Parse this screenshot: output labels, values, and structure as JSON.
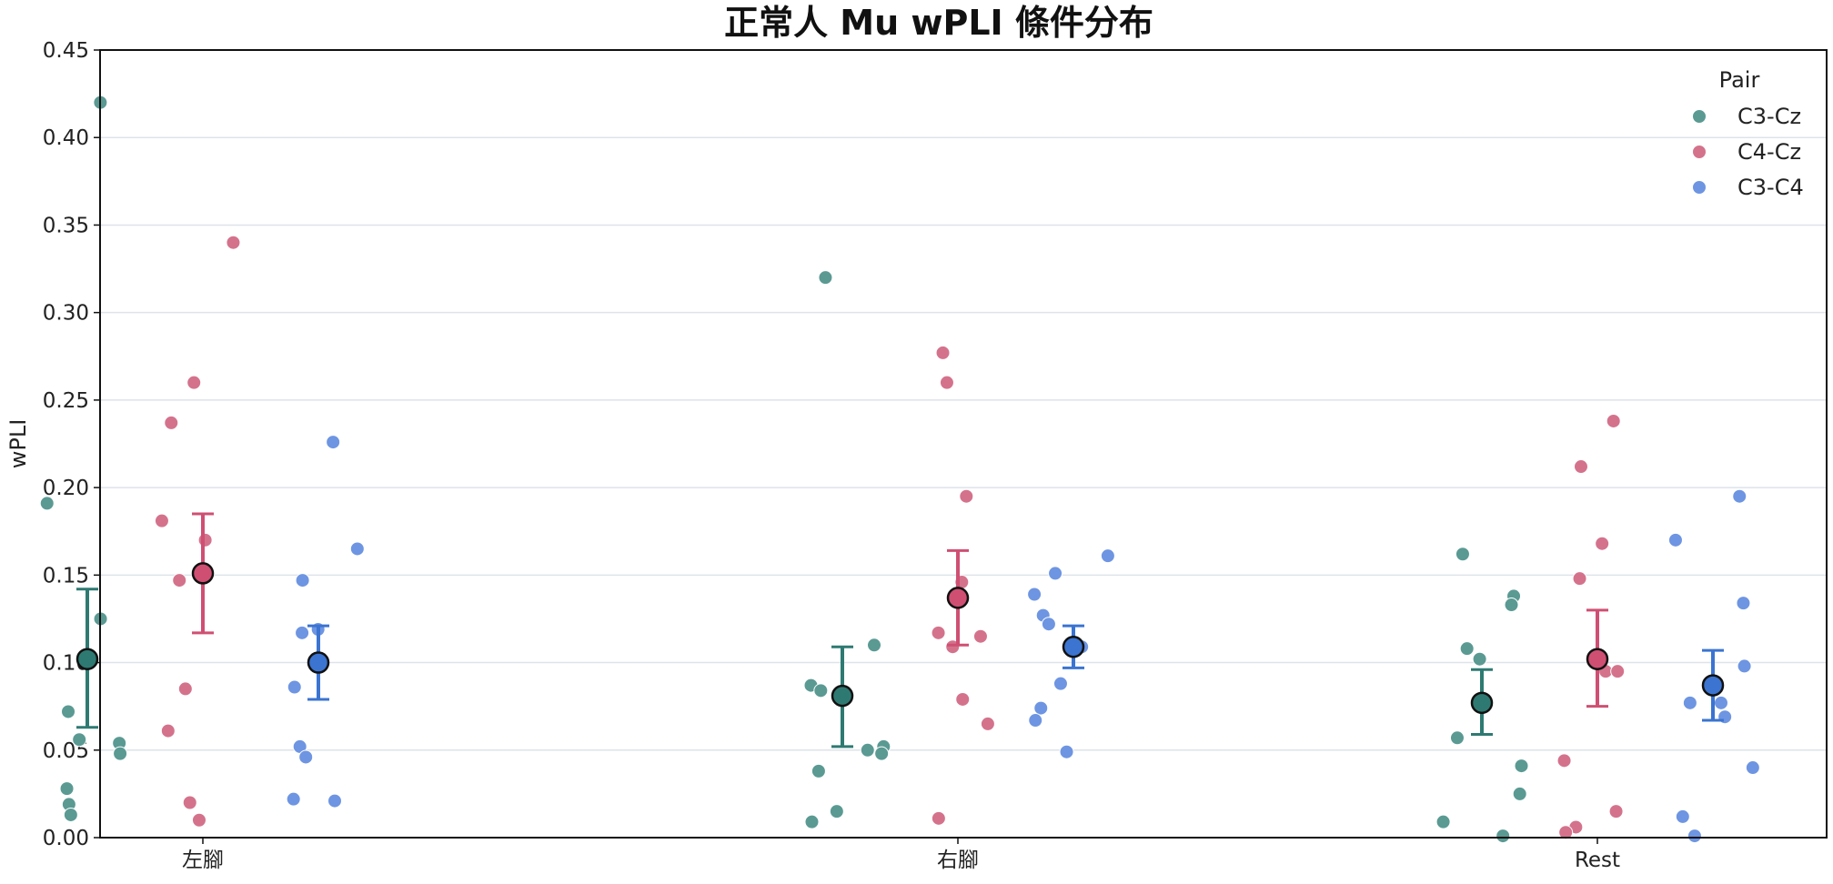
{
  "chart_data": {
    "type": "scatter",
    "title": "正常人 Mu wPLI 條件分布",
    "xlabel": "",
    "ylabel": "wPLI",
    "categories": [
      "左腳",
      "右腳",
      "Rest"
    ],
    "ylim": [
      0,
      0.45
    ],
    "yticks": [
      "0.00",
      "0.05",
      "0.10",
      "0.15",
      "0.20",
      "0.25",
      "0.30",
      "0.35",
      "0.40",
      "0.45"
    ],
    "grid": "horizontal",
    "legend": {
      "title": "Pair",
      "position": "top-right"
    },
    "series": [
      {
        "name": "C3-Cz",
        "color": "#5a9a93",
        "summary_color": "#2e7a72",
        "points": [
          [
            0.42,
            0.191,
            0.125,
            0.072,
            0.056,
            0.054,
            0.048,
            0.028,
            0.019,
            0.013
          ],
          [
            0.32,
            0.11,
            0.087,
            0.084,
            0.052,
            0.05,
            0.048,
            0.038,
            0.015,
            0.009
          ],
          [
            0.162,
            0.138,
            0.133,
            0.108,
            0.102,
            0.057,
            0.041,
            0.025,
            0.009,
            0.001
          ]
        ],
        "mean": [
          0.102,
          0.081,
          0.077
        ],
        "ci_low": [
          0.063,
          0.052,
          0.059
        ],
        "ci_high": [
          0.142,
          0.109,
          0.096
        ]
      },
      {
        "name": "C4-Cz",
        "color": "#d4728c",
        "summary_color": "#cf4f72",
        "points": [
          [
            0.34,
            0.26,
            0.237,
            0.181,
            0.17,
            0.147,
            0.085,
            0.061,
            0.02,
            0.01
          ],
          [
            0.277,
            0.26,
            0.195,
            0.146,
            0.117,
            0.115,
            0.109,
            0.079,
            0.065,
            0.011
          ],
          [
            0.238,
            0.212,
            0.168,
            0.148,
            0.095,
            0.095,
            0.044,
            0.015,
            0.006,
            0.003
          ]
        ],
        "mean": [
          0.151,
          0.137,
          0.102
        ],
        "ci_low": [
          0.117,
          0.11,
          0.075
        ],
        "ci_high": [
          0.185,
          0.164,
          0.13
        ]
      },
      {
        "name": "C3-C4",
        "color": "#6e95e2",
        "summary_color": "#3b74d1",
        "points": [
          [
            0.226,
            0.165,
            0.147,
            0.119,
            0.117,
            0.086,
            0.052,
            0.046,
            0.022,
            0.021
          ],
          [
            0.161,
            0.151,
            0.139,
            0.127,
            0.122,
            0.088,
            0.074,
            0.067,
            0.049,
            0.109
          ],
          [
            0.195,
            0.17,
            0.134,
            0.098,
            0.077,
            0.077,
            0.069,
            0.04,
            0.012,
            0.001
          ]
        ],
        "mean": [
          0.1,
          0.109,
          0.087
        ],
        "ci_low": [
          0.079,
          0.097,
          0.067
        ],
        "ci_high": [
          0.121,
          0.121,
          0.107
        ]
      }
    ]
  }
}
